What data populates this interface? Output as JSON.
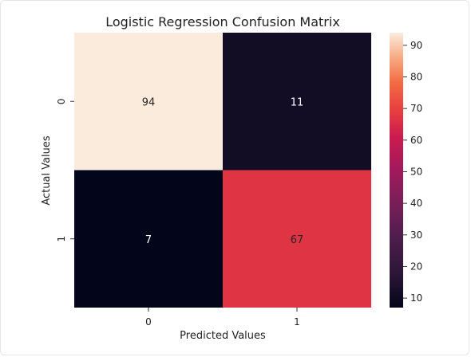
{
  "chart_data": {
    "type": "heatmap",
    "title": "Logistic Regression Confusion Matrix",
    "xlabel": "Predicted Values",
    "ylabel": "Actual Values",
    "x_categories": [
      "0",
      "1"
    ],
    "y_categories": [
      "0",
      "1"
    ],
    "values": [
      [
        94,
        11
      ],
      [
        7,
        67
      ]
    ],
    "annotations": [
      [
        "94",
        "11"
      ],
      [
        "7",
        "67"
      ]
    ],
    "colormap": "rocket",
    "colorbar": {
      "ticks": [
        10,
        20,
        30,
        40,
        50,
        60,
        70,
        80,
        90
      ],
      "tick_labels": [
        "10",
        "20",
        "30",
        "40",
        "50",
        "60",
        "70",
        "80",
        "90"
      ],
      "range": [
        7,
        94
      ]
    },
    "legend": "colorbar-right",
    "grid": false
  }
}
